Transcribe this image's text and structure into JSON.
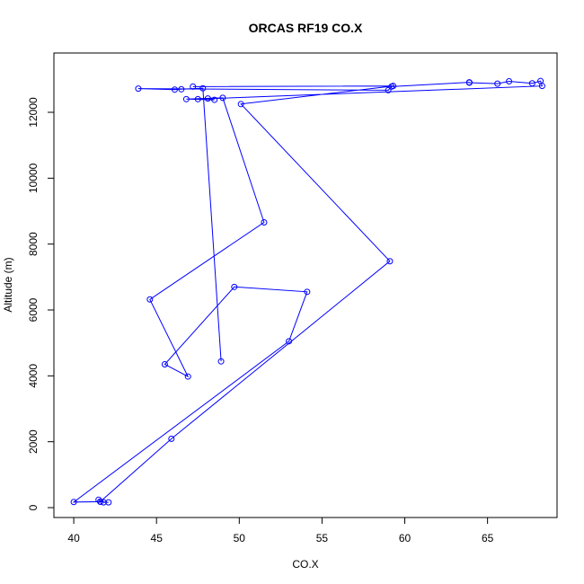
{
  "chart_data": {
    "type": "line",
    "title": "ORCAS RF19 CO.X",
    "xlabel": "CO.X",
    "ylabel": "Altitude (m)",
    "xlim": [
      38.8,
      69.2
    ],
    "ylim": [
      -300,
      13800
    ],
    "x_ticks": [
      40,
      45,
      50,
      55,
      60,
      65
    ],
    "y_ticks": [
      0,
      2000,
      4000,
      6000,
      8000,
      10000,
      12000
    ],
    "grid": false,
    "markers": "open-circle",
    "line_color": "#0000ff",
    "series": [
      {
        "x": [
          48.9,
          47.8,
          46.5,
          46.1,
          43.9,
          59.0,
          59.2,
          63.9,
          63.9,
          65.6,
          66.3,
          67.7,
          68.2,
          68.3,
          47.5,
          48.1,
          48.5,
          46.8,
          49.0,
          51.5,
          44.6,
          46.9,
          45.5,
          49.7,
          54.1,
          53.0,
          40.0,
          41.6,
          41.5,
          41.8,
          42.1,
          41.6,
          45.9,
          59.1,
          50.1,
          59.3,
          47.2
        ],
        "y": [
          4440,
          12730,
          12700,
          12690,
          12720,
          12670,
          12780,
          12910,
          12900,
          12870,
          12940,
          12880,
          12950,
          12800,
          12400,
          12420,
          12380,
          12400,
          12440,
          8660,
          6320,
          3980,
          4350,
          6700,
          6550,
          5050,
          170,
          180,
          240,
          160,
          160,
          180,
          2090,
          7480,
          12250,
          12800,
          12780
        ]
      }
    ]
  }
}
